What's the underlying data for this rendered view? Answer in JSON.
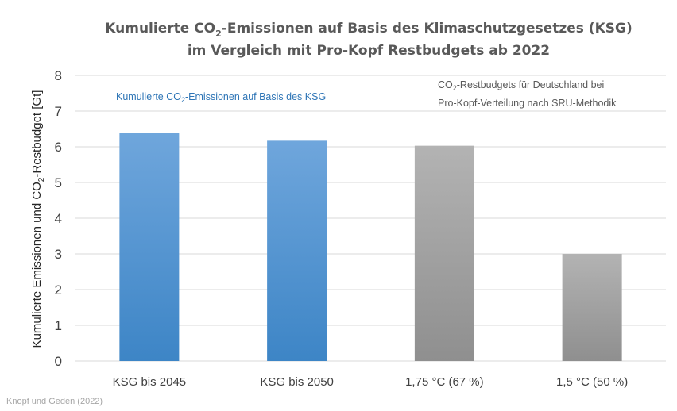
{
  "chart_data": {
    "type": "bar",
    "title": {
      "line1_pre": "Kumulierte CO",
      "line1_sub": "2",
      "line1_post": "-Emissionen auf Basis des Klimaschutzgesetzes (KSG)",
      "line2": "im Vergleich mit Pro-Kopf Restbudgets ab 2022"
    },
    "ylabel": {
      "pre": "Kumulierte Emissionen und CO",
      "sub": "2",
      "post": "-Restbudget [Gt]"
    },
    "ylim": [
      0,
      8
    ],
    "yticks": [
      "0",
      "1",
      "2",
      "3",
      "4",
      "5",
      "6",
      "7",
      "8"
    ],
    "grid": true,
    "categories": [
      "KSG bis 2045",
      "KSG bis 2050",
      "1,75 °C (67 %)",
      "1,5 °C (50 %)"
    ],
    "values": [
      6.38,
      6.17,
      6.03,
      3.0
    ],
    "bar_groups": [
      "ksg",
      "ksg",
      "budget",
      "budget"
    ],
    "colors": {
      "ksg_top": "#6fa6dc",
      "ksg_bottom": "#3d85c6",
      "budget_top": "#b3b3b3",
      "budget_bottom": "#8f8f8f",
      "grid": "#d9d9d9",
      "annotation_blue": "#2e75b6",
      "annotation_gray": "#595959"
    },
    "annotations": {
      "ksg": {
        "pre": "Kumulierte  CO",
        "sub": "2",
        "post": "-Emissionen auf Basis des KSG"
      },
      "budget_line1": {
        "pre": "CO",
        "sub": "2",
        "post": "-Restbudgets für Deutschland bei"
      },
      "budget_line2": "Pro-Kopf-Verteilung  nach SRU-Methodik"
    },
    "source": "Knopf und Geden (2022)"
  }
}
